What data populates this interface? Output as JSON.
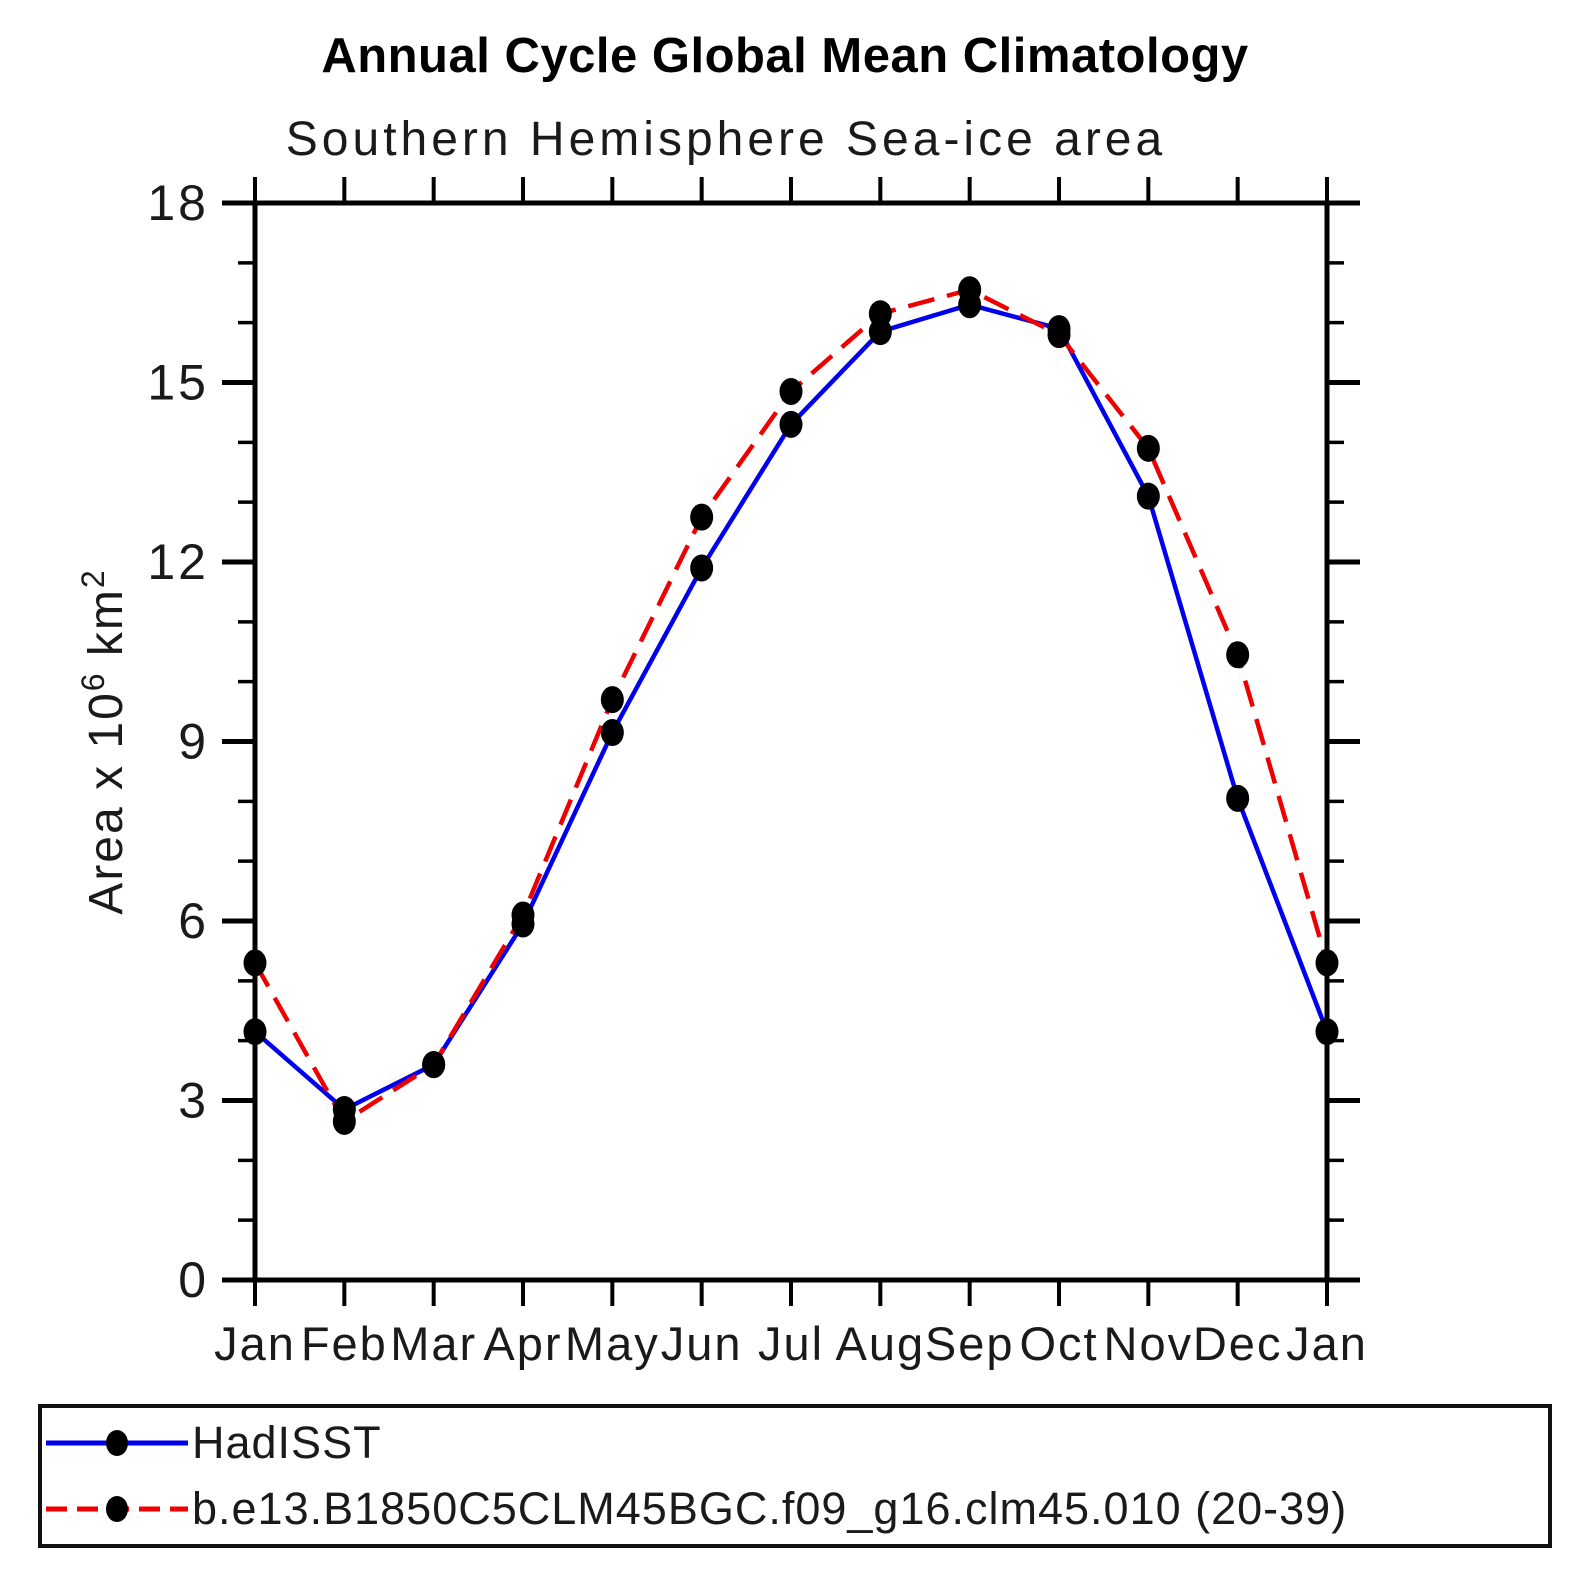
{
  "title": "Annual Cycle Global Mean Climatology",
  "subtitle": "Southern Hemisphere Sea-ice area",
  "chart_data": {
    "type": "line",
    "x_categories": [
      "Jan",
      "Feb",
      "Mar",
      "Apr",
      "May",
      "Jun",
      "Jul",
      "Aug",
      "Sep",
      "Oct",
      "Nov",
      "Dec",
      "Jan"
    ],
    "ylim": [
      0,
      18
    ],
    "y_major_ticks": [
      0,
      3,
      6,
      9,
      12,
      15,
      18
    ],
    "y_minor_step": 1,
    "grid": "off",
    "legend_position": "bottom-outside-box",
    "ylabel_segments": [
      {
        "t": "Area x 10"
      },
      {
        "t": "6",
        "sup": true
      },
      {
        "t": " km"
      },
      {
        "t": "2",
        "sup": true
      }
    ],
    "marker": {
      "shape": "filled-circle",
      "color": "#000000"
    },
    "series": [
      {
        "name": "HadISST",
        "color": "#0000ee",
        "style": "solid",
        "values": [
          4.15,
          2.85,
          3.6,
          5.95,
          9.15,
          11.9,
          14.3,
          15.85,
          16.3,
          15.9,
          13.1,
          8.05,
          4.15
        ]
      },
      {
        "name": "b.e13.B1850C5CLM45BGC.f09_g16.clm45.010 (20-39)",
        "color": "#ee0000",
        "style": "dashed",
        "values": [
          5.3,
          2.65,
          3.6,
          6.1,
          9.7,
          12.75,
          14.85,
          16.15,
          16.55,
          15.8,
          13.9,
          10.45,
          5.3
        ]
      }
    ]
  }
}
